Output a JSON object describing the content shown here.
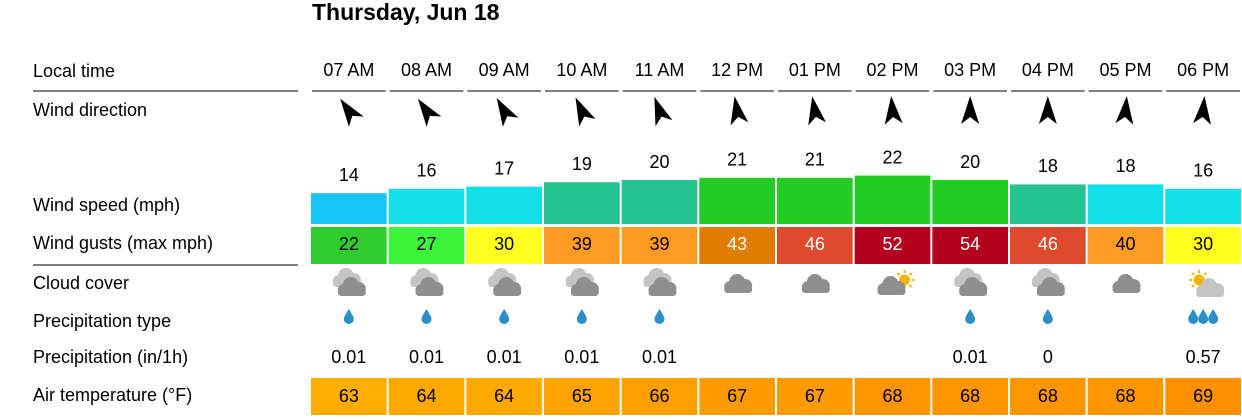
{
  "header": {
    "title": "Thursday, Jun 18"
  },
  "table": {
    "row_labels": [
      "Local time",
      "Wind direction",
      "Wind speed (mph)",
      "Wind gusts (max mph)",
      "Cloud cover",
      "Precipitation type",
      "Precipitation (in/1h)",
      "Air temperature (°F)"
    ],
    "times": [
      "07 AM",
      "08 AM",
      "09 AM",
      "10 AM",
      "11 AM",
      "12 PM",
      "01 PM",
      "02 PM",
      "03 PM",
      "04 PM",
      "05 PM",
      "06 PM"
    ],
    "wind_direction_deg": [
      -35,
      -35,
      -30,
      -25,
      -20,
      -10,
      -10,
      -5,
      0,
      0,
      5,
      5
    ],
    "wind_speed": [
      14,
      16,
      17,
      19,
      20,
      21,
      21,
      22,
      20,
      18,
      18,
      16
    ],
    "wind_speed_colors": [
      "#16c4f6",
      "#12dfea",
      "#12dfea",
      "#25c392",
      "#25c392",
      "#22cc22",
      "#22cc22",
      "#22cc22",
      "#22cc22",
      "#25c392",
      "#12dfea",
      "#12dfea"
    ],
    "wind_gusts": [
      22,
      27,
      30,
      39,
      39,
      43,
      46,
      52,
      54,
      46,
      40,
      30
    ],
    "wind_gusts_colors": [
      "#2ecc2e",
      "#3cf53c",
      "#ffff1e",
      "#ff9a22",
      "#ff9a22",
      "#e07c00",
      "#de4a2c",
      "#b4001e",
      "#b4001e",
      "#de4a2c",
      "#ff9a22",
      "#ffff1e"
    ],
    "wind_gusts_text_colors": [
      "#000",
      "#000",
      "#000",
      "#000",
      "#000",
      "#fff",
      "#fff",
      "#fff",
      "#fff",
      "#fff",
      "#000",
      "#000"
    ],
    "precipitation": [
      0.01,
      0.01,
      0.01,
      0.01,
      0.01,
      null,
      null,
      null,
      0.01,
      0,
      null,
      0.57
    ],
    "air_temperature": [
      63,
      64,
      64,
      65,
      66,
      67,
      67,
      68,
      68,
      68,
      68,
      69
    ],
    "air_temperature_colors": [
      "#ffad00",
      "#ffa800",
      "#ffa800",
      "#ffa300",
      "#ff9f00",
      "#ff9a00",
      "#ff9a00",
      "#ff9500",
      "#ff9500",
      "#ff9500",
      "#ff9500",
      "#ff9000"
    ]
  }
}
